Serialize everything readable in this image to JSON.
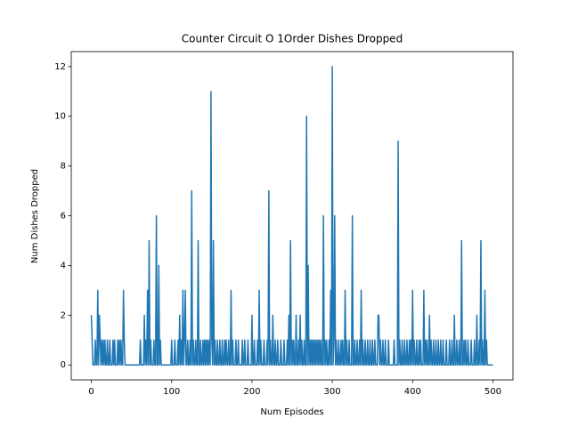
{
  "chart_data": {
    "type": "line",
    "title": "Counter Circuit O 1Order Dishes Dropped",
    "x_label": "Num Episodes",
    "y_label": "Num Dishes Dropped",
    "xlim": [
      -25,
      525
    ],
    "xticks": [
      0,
      100,
      200,
      300,
      400,
      500
    ],
    "ylim": [
      -0.6,
      12.6
    ],
    "yticks": [
      0,
      2,
      4,
      6,
      8,
      10,
      12
    ],
    "series": [
      {
        "color": "#1f77b4",
        "values": [
          2,
          1,
          0,
          0,
          0,
          1,
          0,
          0,
          3,
          0,
          2,
          1,
          0,
          1,
          0,
          1,
          0,
          1,
          0,
          0,
          1,
          0,
          0,
          1,
          0,
          0,
          0,
          1,
          0,
          1,
          0,
          0,
          0,
          1,
          0,
          1,
          0,
          1,
          0,
          0,
          3,
          1,
          0,
          0,
          0,
          0,
          0,
          0,
          0,
          0,
          0,
          0,
          0,
          0,
          0,
          0,
          0,
          0,
          0,
          0,
          0,
          1,
          0,
          0,
          0,
          0,
          2,
          0,
          1,
          0,
          3,
          0,
          5,
          0,
          1,
          0,
          0,
          0,
          1,
          0,
          0,
          6,
          0,
          0,
          4,
          0,
          1,
          0,
          0,
          0,
          0,
          0,
          0,
          0,
          0,
          0,
          0,
          0,
          0,
          0,
          1,
          0,
          0,
          0,
          1,
          0,
          0,
          0,
          1,
          0,
          2,
          0,
          1,
          0,
          3,
          0,
          1,
          3,
          0,
          0,
          1,
          0,
          0,
          1,
          0,
          7,
          0,
          1,
          0,
          0,
          1,
          0,
          0,
          5,
          0,
          0,
          1,
          0,
          0,
          1,
          0,
          1,
          0,
          1,
          0,
          1,
          0,
          1,
          0,
          11,
          1,
          0,
          5,
          0,
          1,
          0,
          0,
          1,
          0,
          0,
          1,
          0,
          0,
          1,
          0,
          0,
          1,
          0,
          1,
          0,
          0,
          1,
          0,
          0,
          3,
          0,
          1,
          0,
          0,
          0,
          1,
          0,
          0,
          1,
          0,
          0,
          0,
          0,
          1,
          0,
          0,
          1,
          0,
          0,
          0,
          1,
          0,
          0,
          0,
          0,
          2,
          0,
          0,
          1,
          0,
          0,
          0,
          1,
          0,
          3,
          0,
          1,
          0,
          0,
          0,
          1,
          0,
          0,
          0,
          1,
          0,
          7,
          0,
          1,
          0,
          0,
          2,
          0,
          0,
          1,
          0,
          0,
          1,
          0,
          0,
          0,
          1,
          0,
          0,
          0,
          1,
          0,
          0,
          0,
          1,
          0,
          2,
          0,
          5,
          0,
          1,
          0,
          1,
          0,
          0,
          2,
          0,
          0,
          1,
          0,
          2,
          0,
          1,
          0,
          0,
          1,
          0,
          0,
          10,
          0,
          4,
          0,
          1,
          0,
          1,
          0,
          1,
          0,
          1,
          0,
          1,
          0,
          1,
          0,
          1,
          0,
          1,
          0,
          0,
          6,
          0,
          1,
          0,
          1,
          0,
          0,
          1,
          0,
          3,
          0,
          12,
          0,
          1,
          6,
          0,
          1,
          0,
          0,
          1,
          0,
          0,
          1,
          0,
          1,
          0,
          0,
          3,
          0,
          1,
          0,
          0,
          1,
          0,
          0,
          0,
          6,
          0,
          0,
          1,
          0,
          0,
          1,
          0,
          0,
          1,
          0,
          3,
          0,
          1,
          0,
          0,
          1,
          0,
          0,
          1,
          0,
          0,
          1,
          0,
          0,
          1,
          0,
          0,
          1,
          0,
          0,
          0,
          2,
          2,
          0,
          1,
          0,
          0,
          1,
          0,
          0,
          1,
          0,
          0,
          0,
          1,
          0,
          0,
          0,
          0,
          0,
          0,
          1,
          0,
          0,
          0,
          0,
          9,
          0,
          1,
          0,
          0,
          1,
          0,
          0,
          1,
          0,
          0,
          1,
          0,
          0,
          1,
          0,
          1,
          0,
          3,
          0,
          1,
          0,
          0,
          1,
          0,
          0,
          1,
          0,
          1,
          0,
          0,
          0,
          3,
          0,
          1,
          0,
          1,
          0,
          0,
          2,
          0,
          1,
          0,
          0,
          1,
          0,
          0,
          1,
          0,
          0,
          1,
          0,
          0,
          1,
          0,
          0,
          1,
          0,
          0,
          0,
          1,
          0,
          0,
          0,
          1,
          0,
          0,
          1,
          0,
          0,
          2,
          0,
          0,
          1,
          0,
          0,
          1,
          0,
          0,
          5,
          0,
          0,
          1,
          0,
          1,
          0,
          0,
          1,
          0,
          0,
          0,
          1,
          0,
          0,
          0,
          1,
          0,
          0,
          2,
          0,
          0,
          1,
          0,
          5,
          0,
          1,
          0,
          0,
          3,
          0,
          1,
          0,
          0,
          0,
          0,
          0,
          0,
          0,
          0
        ]
      }
    ]
  }
}
